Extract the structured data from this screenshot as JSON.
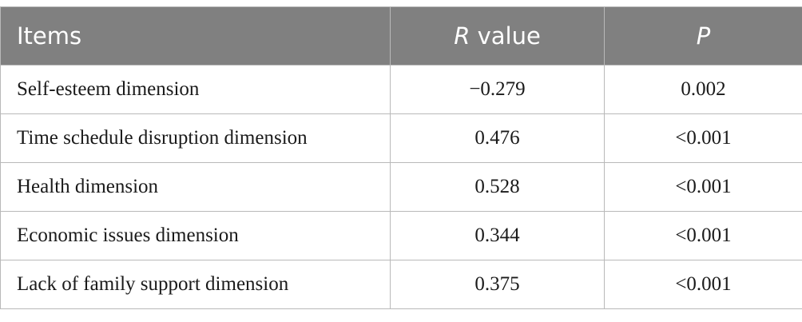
{
  "table": {
    "header": {
      "items": "Items",
      "r_italic": "R",
      "r_rest": " value",
      "p": "P"
    },
    "rows": [
      {
        "item": "Self-esteem dimension",
        "r": "−0.279",
        "p": "0.002"
      },
      {
        "item": "Time schedule disruption dimension",
        "r": "0.476",
        "p": "<0.001"
      },
      {
        "item": "Health dimension",
        "r": "0.528",
        "p": "<0.001"
      },
      {
        "item": "Economic issues dimension",
        "r": "0.344",
        "p": "<0.001"
      },
      {
        "item": "Lack of family support dimension",
        "r": "0.375",
        "p": "<0.001"
      }
    ]
  }
}
